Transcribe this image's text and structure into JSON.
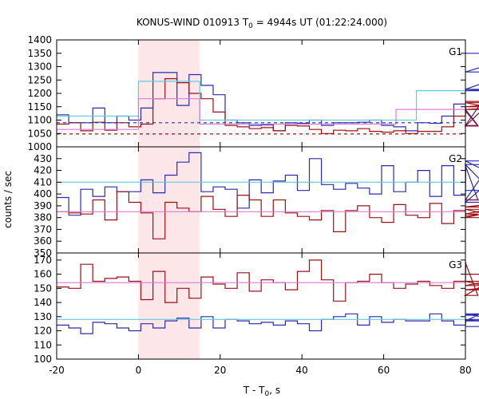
{
  "chart_data": {
    "type": "line",
    "title": {
      "prefix": "KONUS-WIND 010913 T",
      "sub": "0",
      "suffix": " = 4944s UT (01:22:24.000)"
    },
    "xlabel": {
      "prefix": "T - T",
      "sub": "0",
      "suffix": ", s"
    },
    "ylabel": "counts / sec",
    "xlim": [
      -20,
      80
    ],
    "x_ticks": [
      -20,
      0,
      20,
      40,
      60,
      80
    ],
    "shaded_interval": [
      0,
      15
    ],
    "colors": {
      "blue": "#2b2bb0",
      "red": "#9c1016",
      "cyan": "#5fcde0",
      "pink": "#e07ad8",
      "shade": "#fde6e8"
    },
    "panels": [
      {
        "label": "G1",
        "ylim": [
          1000,
          1400
        ],
        "y_ticks": [
          1000,
          1050,
          1100,
          1150,
          1200,
          1250,
          1300,
          1350,
          1400
        ],
        "series": [
          {
            "color": "blue",
            "kind": "step",
            "x0": -20,
            "dx": 2.944,
            "values": [
              1120,
              1090,
              1090,
              1145,
              1090,
              1115,
              1100,
              1145,
              1278,
              1278,
              1155,
              1270,
              1230,
              1195,
              1100,
              1090,
              1080,
              1082,
              1060,
              1090,
              1088,
              1100,
              1080,
              1090,
              1090,
              1092,
              1100,
              1080,
              1075,
              1060,
              1090,
              1088,
              1115,
              1160,
              1140,
              1080,
              1210,
              1215,
              1280,
              1350
            ]
          },
          {
            "color": "red",
            "kind": "step",
            "x0": -20,
            "dx": 2.944,
            "values": [
              1085,
              1090,
              1060,
              1092,
              1062,
              1090,
              1075,
              1085,
              1180,
              1255,
              1240,
              1200,
              1180,
              1130,
              1080,
              1075,
              1068,
              1072,
              1060,
              1080,
              1078,
              1065,
              1050,
              1062,
              1060,
              1068,
              1058,
              1055,
              1060,
              1050,
              1058,
              1058,
              1075,
              1115,
              1135,
              1078,
              1165,
              1140,
              1150,
              1170
            ]
          },
          {
            "color": "cyan",
            "kind": "step",
            "values": [
              [
                -20,
                1115
              ],
              [
                0,
                1245
              ],
              [
                15,
                1100
              ],
              [
                68,
                1210
              ],
              [
                80,
                1210
              ]
            ]
          },
          {
            "color": "pink",
            "kind": "step",
            "values": [
              [
                -20,
                1065
              ],
              [
                0,
                1180
              ],
              [
                15,
                1085
              ],
              [
                63,
                1140
              ],
              [
                80,
                1140
              ]
            ]
          },
          {
            "color": "blue",
            "kind": "dashed",
            "values": [
              [
                -20,
                1090
              ],
              [
                80,
                1090
              ]
            ]
          },
          {
            "color": "red",
            "kind": "dashed",
            "values": [
              [
                -20,
                1048
              ],
              [
                80,
                1048
              ]
            ]
          }
        ]
      },
      {
        "label": "G2",
        "ylim": [
          350,
          440
        ],
        "y_ticks": [
          350,
          360,
          370,
          380,
          390,
          400,
          410,
          420,
          430
        ],
        "series": [
          {
            "color": "blue",
            "kind": "step",
            "x0": -20,
            "dx": 2.944,
            "values": [
              397,
              382,
              404,
              398,
              406,
              402,
              402,
              412,
              401,
              416,
              427,
              435,
              402,
              406,
              404,
              388,
              412,
              401,
              411,
              416,
              403,
              430,
              408,
              404,
              409,
              405,
              400,
              424,
              402,
              410,
              420,
              398,
              424,
              399,
              424,
              395,
              425,
              393,
              428,
              403
            ]
          },
          {
            "color": "red",
            "kind": "step",
            "x0": -20,
            "dx": 2.944,
            "values": [
              385,
              384,
              383,
              395,
              378,
              402,
              393,
              384,
              362,
              393,
              388,
              385,
              398,
              387,
              381,
              399,
              395,
              381,
              395,
              384,
              381,
              378,
              386,
              368,
              386,
              390,
              380,
              376,
              391,
              382,
              380,
              392,
              375,
              386,
              381,
              383,
              387,
              380,
              389,
              395
            ]
          },
          {
            "color": "cyan",
            "kind": "step",
            "values": [
              [
                -20,
                410
              ],
              [
                80,
                410
              ]
            ]
          },
          {
            "color": "pink",
            "kind": "step",
            "values": [
              [
                -20,
                385
              ],
              [
                80,
                385
              ]
            ]
          }
        ]
      },
      {
        "label": "G3",
        "ylim": [
          100,
          175
        ],
        "y_ticks": [
          100,
          110,
          120,
          130,
          140,
          150,
          160,
          170
        ],
        "series": [
          {
            "color": "blue",
            "kind": "step",
            "x0": -20,
            "dx": 2.944,
            "values": [
              124,
              122,
              118,
              126,
              125,
              122,
              120,
              125,
              122,
              127,
              129,
              122,
              130,
              122,
              128,
              127,
              125,
              126,
              124,
              127,
              125,
              120,
              128,
              130,
              132,
              124,
              130,
              126,
              128,
              127,
              127,
              132,
              127,
              124,
              127,
              131,
              132,
              127,
              128,
              123
            ]
          },
          {
            "color": "red",
            "kind": "step",
            "x0": -20,
            "dx": 2.944,
            "values": [
              151,
              150,
              167,
              155,
              157,
              158,
              155,
              142,
              162,
              140,
              150,
              143,
              158,
              153,
              150,
              161,
              148,
              156,
              154,
              149,
              162,
              170,
              156,
              141,
              154,
              155,
              160,
              154,
              150,
              153,
              155,
              152,
              150,
              155,
              168,
              145,
              155,
              149,
              152,
              160
            ]
          },
          {
            "color": "cyan",
            "kind": "step",
            "values": [
              [
                -20,
                128
              ],
              [
                80,
                128
              ]
            ]
          },
          {
            "color": "pink",
            "kind": "step",
            "values": [
              [
                -20,
                154
              ],
              [
                80,
                154
              ]
            ]
          }
        ]
      }
    ]
  }
}
